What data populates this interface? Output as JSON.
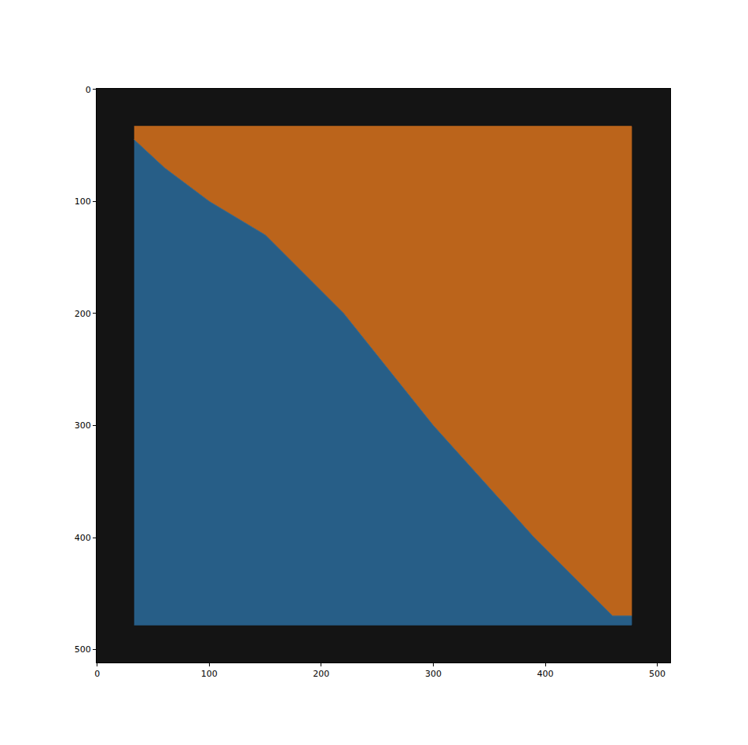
{
  "chart_data": {
    "type": "area",
    "series": [
      {
        "color": "#d9731d",
        "x": [
          33,
          477,
          477,
          460,
          390,
          300,
          220,
          150,
          100,
          60,
          33
        ],
        "y": [
          33,
          33,
          470,
          470,
          400,
          300,
          200,
          130,
          100,
          70,
          45
        ]
      },
      {
        "color": "#2b6b9c",
        "x": [
          33,
          60,
          100,
          150,
          220,
          300,
          390,
          460,
          477,
          477,
          33
        ],
        "y": [
          45,
          70,
          100,
          130,
          200,
          300,
          400,
          470,
          470,
          478,
          478
        ]
      }
    ],
    "xlim": [
      -0.5,
      511.5
    ],
    "ylim": [
      511.5,
      -0.5
    ],
    "xticks": [
      0,
      100,
      200,
      300,
      400,
      500
    ],
    "yticks": [
      0,
      100,
      200,
      300,
      400,
      500
    ],
    "grid": false
  }
}
